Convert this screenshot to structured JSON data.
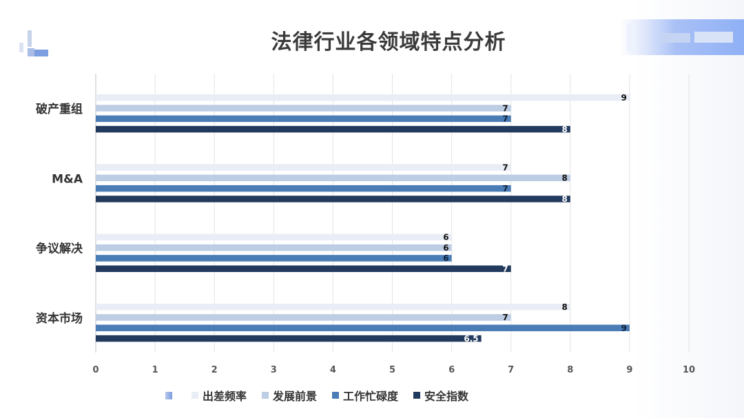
{
  "title": "法律行业各领域特点分析",
  "colors": {
    "出差频率": "#e9edf5",
    "发展前景": "#bccde4",
    "工作忙碌度": "#4a7db6",
    "安全指数": "#223a5e"
  },
  "chart_data": {
    "type": "bar",
    "orientation": "horizontal",
    "title": "法律行业各领域特点分析",
    "categories": [
      "破产重组",
      "M&A",
      "争议解决",
      "资本市场"
    ],
    "series": [
      {
        "name": "出差频率",
        "values": [
          9,
          7,
          6,
          8
        ]
      },
      {
        "name": "发展前景",
        "values": [
          7,
          8,
          6,
          7
        ]
      },
      {
        "name": "工作忙碌度",
        "values": [
          7,
          7,
          6,
          9
        ]
      },
      {
        "name": "安全指数",
        "values": [
          8,
          8,
          7,
          6.5
        ]
      }
    ],
    "xlim": [
      0,
      10
    ],
    "xticks": [
      "0",
      "1",
      "2",
      "3",
      "4",
      "5",
      "6",
      "7",
      "8",
      "9",
      "10"
    ],
    "grid": true,
    "legend_position": "bottom"
  },
  "legend": {
    "items": [
      "出差频率",
      "发展前景",
      "工作忙碌度",
      "安全指数"
    ]
  }
}
